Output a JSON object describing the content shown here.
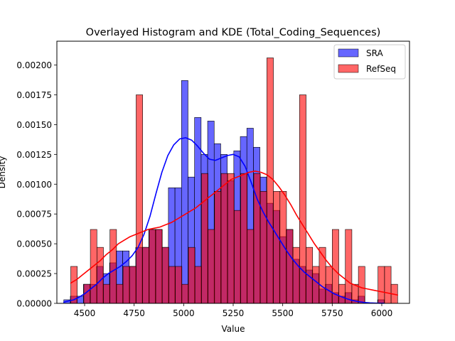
{
  "chart_data": {
    "type": "histogram",
    "title": "Overlayed Histogram and KDE (Total_Coding_Sequences)",
    "xlabel": "Value",
    "ylabel": "Density",
    "xlim": [
      4360,
      6140
    ],
    "ylim": [
      0,
      0.0022
    ],
    "xticks": [
      4500,
      4750,
      5000,
      5250,
      5500,
      5750,
      6000
    ],
    "xtick_labels": [
      "4500",
      "4750",
      "5000",
      "5250",
      "5500",
      "5750",
      "6000"
    ],
    "yticks": [
      0,
      0.00025,
      0.0005,
      0.00075,
      0.001,
      0.00125,
      0.0015,
      0.00175,
      0.002
    ],
    "ytick_labels": [
      "0.00000",
      "0.00025",
      "0.00050",
      "0.00075",
      "0.00100",
      "0.00125",
      "0.00150",
      "0.00175",
      "0.00200"
    ],
    "grid": false,
    "legend_position": "top-right",
    "series": [
      {
        "name": "SRA",
        "color": "#0000ff",
        "bins": [
          [
            4395,
            4428,
            3e-05
          ],
          [
            4428,
            4461,
            6e-05
          ],
          [
            4461,
            4494,
            6e-05
          ],
          [
            4494,
            4527,
            0.00016
          ],
          [
            4527,
            4560,
            0.00016
          ],
          [
            4560,
            4593,
            0.00031
          ],
          [
            4593,
            4626,
            0.00025
          ],
          [
            4626,
            4659,
            0.00034
          ],
          [
            4659,
            4692,
            0.00044
          ],
          [
            4692,
            4725,
            0.00044
          ],
          [
            4725,
            4758,
            0.00031
          ],
          [
            4758,
            4791,
            0.00047
          ],
          [
            4791,
            4824,
            0.00047
          ],
          [
            4824,
            4857,
            0.00062
          ],
          [
            4857,
            4890,
            0.00062
          ],
          [
            4890,
            4923,
            0.00047
          ],
          [
            4923,
            4956,
            0.00097
          ],
          [
            4956,
            4989,
            0.00097
          ],
          [
            4989,
            5022,
            0.00187
          ],
          [
            5022,
            5055,
            0.00106
          ],
          [
            5055,
            5088,
            0.00156
          ],
          [
            5088,
            5121,
            0.00125
          ],
          [
            5121,
            5154,
            0.00153
          ],
          [
            5154,
            5187,
            0.00134
          ],
          [
            5187,
            5220,
            0.00125
          ],
          [
            5220,
            5253,
            0.00103
          ],
          [
            5253,
            5286,
            0.00128
          ],
          [
            5286,
            5319,
            0.0014
          ],
          [
            5319,
            5352,
            0.00147
          ],
          [
            5352,
            5385,
            0.00131
          ],
          [
            5385,
            5418,
            0.00106
          ],
          [
            5418,
            5451,
            0.00084
          ],
          [
            5451,
            5484,
            0.00078
          ],
          [
            5484,
            5517,
            0.00056
          ],
          [
            5517,
            5550,
            0.00062
          ],
          [
            5550,
            5583,
            0.00037
          ],
          [
            5583,
            5616,
            0.00031
          ],
          [
            5616,
            5649,
            0.00028
          ],
          [
            5649,
            5682,
            0.00025
          ],
          [
            5682,
            5715,
            0.00012
          ],
          [
            5715,
            5748,
            0.00016
          ],
          [
            5748,
            5781,
            9e-05
          ],
          [
            5781,
            5814,
            6e-05
          ],
          [
            5814,
            5847,
            9e-05
          ],
          [
            5847,
            5880,
            3e-05
          ],
          [
            5880,
            5913,
            6e-05
          ],
          [
            5979,
            6012,
            3e-05
          ]
        ],
        "kde": {
          "x": [
            4395,
            4420,
            4445,
            4470,
            4500,
            4530,
            4560,
            4590,
            4620,
            4650,
            4680,
            4710,
            4740,
            4770,
            4800,
            4830,
            4860,
            4890,
            4920,
            4950,
            4980,
            5010,
            5040,
            5070,
            5100,
            5130,
            5160,
            5190,
            5220,
            5250,
            5280,
            5310,
            5340,
            5370,
            5400,
            5430,
            5460,
            5490,
            5520,
            5550,
            5580,
            5610,
            5640,
            5670,
            5700,
            5730,
            5760,
            5790,
            5820,
            5850,
            5880,
            5910,
            5940,
            5970,
            6000,
            6012
          ],
          "y": [
            1e-05,
            2e-05,
            3e-05,
            5e-05,
            8e-05,
            0.00012,
            0.00016,
            0.00021,
            0.00025,
            0.00028,
            0.00031,
            0.00035,
            0.0004,
            0.00047,
            0.00058,
            0.00073,
            0.00092,
            0.0011,
            0.00124,
            0.00133,
            0.00138,
            0.00139,
            0.00137,
            0.00132,
            0.00126,
            0.00121,
            0.0012,
            0.00122,
            0.00124,
            0.00125,
            0.00123,
            0.00115,
            0.00102,
            0.00088,
            0.00077,
            0.00068,
            0.0006,
            0.00052,
            0.00044,
            0.00037,
            0.00031,
            0.00026,
            0.00022,
            0.00018,
            0.00014,
            0.00011,
            8e-05,
            6e-05,
            4e-05,
            2.5e-05,
            1.5e-05,
            8e-06,
            4e-06,
            2e-06,
            1e-06,
            1e-06
          ]
        }
      },
      {
        "name": "RefSeq",
        "color": "#ff0000",
        "bins": [
          [
            4430,
            4463,
            0.00031
          ],
          [
            4496,
            4529,
            0.00016
          ],
          [
            4529,
            4562,
            0.00062
          ],
          [
            4562,
            4595,
            0.00047
          ],
          [
            4595,
            4628,
            0.00016
          ],
          [
            4628,
            4661,
            0.00062
          ],
          [
            4661,
            4694,
            0.00016
          ],
          [
            4694,
            4727,
            0.00031
          ],
          [
            4727,
            4760,
            0.00031
          ],
          [
            4760,
            4793,
            0.00175
          ],
          [
            4793,
            4826,
            0.00047
          ],
          [
            4826,
            4859,
            0.00062
          ],
          [
            4859,
            4892,
            0.00062
          ],
          [
            4892,
            4925,
            0.00047
          ],
          [
            4925,
            4958,
            0.00031
          ],
          [
            4958,
            4991,
            0.00031
          ],
          [
            4991,
            5024,
            0.00016
          ],
          [
            5024,
            5057,
            0.00047
          ],
          [
            5057,
            5090,
            0.00031
          ],
          [
            5090,
            5123,
            0.00109
          ],
          [
            5123,
            5156,
            0.00062
          ],
          [
            5156,
            5189,
            0.00094
          ],
          [
            5189,
            5222,
            0.00109
          ],
          [
            5222,
            5255,
            0.00109
          ],
          [
            5255,
            5288,
            0.00078
          ],
          [
            5288,
            5321,
            0.00109
          ],
          [
            5321,
            5354,
            0.00062
          ],
          [
            5354,
            5387,
            0.00109
          ],
          [
            5387,
            5420,
            0.00094
          ],
          [
            5420,
            5453,
            0.00206
          ],
          [
            5453,
            5486,
            0.00094
          ],
          [
            5486,
            5519,
            0.00094
          ],
          [
            5519,
            5552,
            0.00062
          ],
          [
            5552,
            5585,
            0.00047
          ],
          [
            5585,
            5618,
            0.00175
          ],
          [
            5618,
            5651,
            0.00047
          ],
          [
            5651,
            5684,
            0.00031
          ],
          [
            5684,
            5717,
            0.00047
          ],
          [
            5717,
            5750,
            0.00031
          ],
          [
            5750,
            5783,
            0.00062
          ],
          [
            5783,
            5816,
            0.00016
          ],
          [
            5816,
            5849,
            0.00062
          ],
          [
            5849,
            5882,
            0.00016
          ],
          [
            5882,
            5915,
            0.00031
          ],
          [
            5981,
            6014,
            0.00031
          ],
          [
            6014,
            6047,
            0.00031
          ],
          [
            6047,
            6080,
            0.00016
          ]
        ],
        "kde": {
          "x": [
            4430,
            4460,
            4490,
            4520,
            4550,
            4580,
            4610,
            4640,
            4670,
            4700,
            4730,
            4760,
            4790,
            4820,
            4850,
            4880,
            4910,
            4940,
            4970,
            5000,
            5030,
            5060,
            5090,
            5120,
            5150,
            5180,
            5210,
            5240,
            5270,
            5300,
            5330,
            5360,
            5390,
            5420,
            5450,
            5480,
            5510,
            5540,
            5570,
            5600,
            5630,
            5660,
            5690,
            5720,
            5750,
            5780,
            5810,
            5840,
            5870,
            5900,
            5930,
            5960,
            5990,
            6020,
            6050,
            6080
          ],
          "y": [
            0.00017,
            0.0002,
            0.00024,
            0.00028,
            0.00032,
            0.00036,
            0.00041,
            0.00045,
            0.0005,
            0.00053,
            0.00056,
            0.00058,
            0.0006,
            0.00062,
            0.00063,
            0.00064,
            0.00066,
            0.00068,
            0.00071,
            0.00074,
            0.00077,
            0.0008,
            0.00084,
            0.00088,
            0.00092,
            0.00096,
            0.001,
            0.00104,
            0.00106,
            0.00108,
            0.0011,
            0.00111,
            0.0011,
            0.00108,
            0.00104,
            0.00098,
            0.00091,
            0.00083,
            0.00074,
            0.00066,
            0.00058,
            0.0005,
            0.00043,
            0.00036,
            0.0003,
            0.00025,
            0.00021,
            0.00017,
            0.00015,
            0.00013,
            0.00012,
            0.00011,
            0.0001,
            9e-05,
            8e-05,
            7e-05
          ]
        }
      }
    ]
  }
}
